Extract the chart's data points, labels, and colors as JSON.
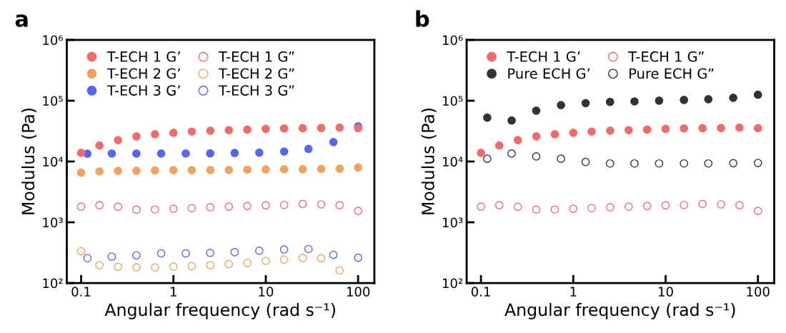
{
  "chart_data": [
    {
      "type": "scatter",
      "title": "a",
      "xlabel": "Angular frequency (rad s⁻¹)",
      "ylabel": "Modulus (Pa)",
      "log": "xy",
      "grid": false,
      "legend": "top left",
      "xlim": [
        0.07,
        150
      ],
      "xticks": [
        0.1,
        1,
        10,
        100
      ],
      "ylim": [
        100,
        1000000
      ],
      "yticks": [
        {
          "value": 100,
          "label": "10²"
        },
        {
          "value": 1000,
          "label": "10³"
        },
        {
          "value": 10000,
          "label": "10⁴"
        },
        {
          "value": 100000,
          "label": "10⁵"
        },
        {
          "value": 1000000,
          "label": "10⁶"
        }
      ],
      "x": [
        0.1,
        0.158,
        0.251,
        0.398,
        0.631,
        1,
        1.58,
        2.51,
        3.98,
        6.31,
        10,
        15.8,
        25.1,
        39.8,
        63.1,
        100
      ],
      "series": [
        {
          "name": "T-ECH 1 G’",
          "color": "#f26b6b",
          "marker": "circle",
          "values": [
            13900,
            18300,
            22500,
            25900,
            28100,
            29600,
            31000,
            32200,
            32800,
            33400,
            34400,
            35000,
            35300,
            35600,
            36000,
            35300
          ]
        },
        {
          "name": "T-ECH 2 G’",
          "color": "#f0a35e",
          "marker": "circle",
          "values": [
            6560,
            6870,
            7000,
            7060,
            7130,
            7190,
            7190,
            7260,
            7260,
            7330,
            7400,
            7460,
            7460,
            7540,
            7600,
            7960
          ]
        },
        {
          "name": "T-ECH 3 G’",
          "color": "#5566f2",
          "marker": "circle",
          "x": [
            0.117,
            0.215,
            0.397,
            0.736,
            1.36,
            2.5,
            4.6,
            8.5,
            15.8,
            29,
            54,
            100
          ],
          "values": [
            13400,
            13500,
            13500,
            13500,
            13500,
            13600,
            13800,
            14000,
            14600,
            16100,
            20900,
            37900
          ]
        },
        {
          "name": "T-ECH 1 G”",
          "color": "#f26b6b",
          "marker": "open circle",
          "values": [
            1810,
            1910,
            1800,
            1610,
            1620,
            1670,
            1710,
            1760,
            1810,
            1850,
            1900,
            1930,
            2000,
            1970,
            1910,
            1540
          ]
        },
        {
          "name": "T-ECH 2 G”",
          "color": "#f0a35e",
          "marker": "open circle",
          "values": [
            334,
            197,
            185,
            181,
            180,
            186,
            190,
            197,
            206,
            215,
            232,
            243,
            259,
            256,
            162,
            null
          ]
        },
        {
          "name": "T-ECH 3 G”",
          "color": "#5566f2",
          "marker": "open circle",
          "x": [
            0.117,
            0.215,
            0.397,
            0.736,
            1.36,
            2.5,
            4.6,
            8.5,
            15.8,
            29,
            54,
            100
          ],
          "values": [
            257,
            273,
            286,
            307,
            307,
            313,
            322,
            340,
            356,
            363,
            291,
            261
          ]
        }
      ]
    },
    {
      "type": "scatter",
      "title": "b",
      "xlabel": "Angular frequency (rad s⁻¹)",
      "ylabel": "Modulus (Pa)",
      "log": "xy",
      "grid": false,
      "legend": "top left",
      "xlim": [
        0.07,
        150
      ],
      "xticks": [
        0.1,
        1,
        10,
        100
      ],
      "ylim": [
        100,
        1000000
      ],
      "yticks": [
        {
          "value": 100,
          "label": "10²"
        },
        {
          "value": 1000,
          "label": "10³"
        },
        {
          "value": 10000,
          "label": "10⁴"
        },
        {
          "value": 100000,
          "label": "10⁵"
        },
        {
          "value": 1000000,
          "label": "10⁶"
        }
      ],
      "x": [
        0.1,
        0.158,
        0.251,
        0.398,
        0.631,
        1,
        1.58,
        2.51,
        3.98,
        6.31,
        10,
        15.8,
        25.1,
        39.8,
        63.1,
        100
      ],
      "series": [
        {
          "name": "T-ECH 1 G’",
          "color": "#f26b6b",
          "marker": "circle",
          "values": [
            13900,
            18300,
            22500,
            25900,
            28100,
            29600,
            31000,
            32200,
            32800,
            33400,
            34400,
            35000,
            35300,
            35600,
            36000,
            35300
          ]
        },
        {
          "name": "Pure ECH G’",
          "color": "#333333",
          "marker": "circle",
          "x": [
            0.117,
            0.215,
            0.397,
            0.736,
            1.36,
            2.5,
            4.6,
            8.5,
            15.8,
            29,
            54,
            100
          ],
          "values": [
            52700,
            47300,
            68700,
            84800,
            91300,
            95500,
            97300,
            100000,
            102800,
            105700,
            111600,
            125700
          ]
        },
        {
          "name": "T-ECH 1 G”",
          "color": "#f26b6b",
          "marker": "open circle",
          "values": [
            1810,
            1910,
            1800,
            1610,
            1620,
            1670,
            1710,
            1760,
            1810,
            1850,
            1900,
            1930,
            2000,
            1970,
            1910,
            1540
          ]
        },
        {
          "name": "Pure ECH G”",
          "color": "#333333",
          "marker": "open circle",
          "x": [
            0.117,
            0.215,
            0.397,
            0.736,
            1.36,
            2.5,
            4.6,
            8.5,
            15.8,
            29,
            54,
            100
          ],
          "values": [
            11100,
            13500,
            12100,
            11100,
            9820,
            9290,
            9290,
            9290,
            9290,
            9290,
            9380,
            9460
          ]
        }
      ]
    }
  ]
}
